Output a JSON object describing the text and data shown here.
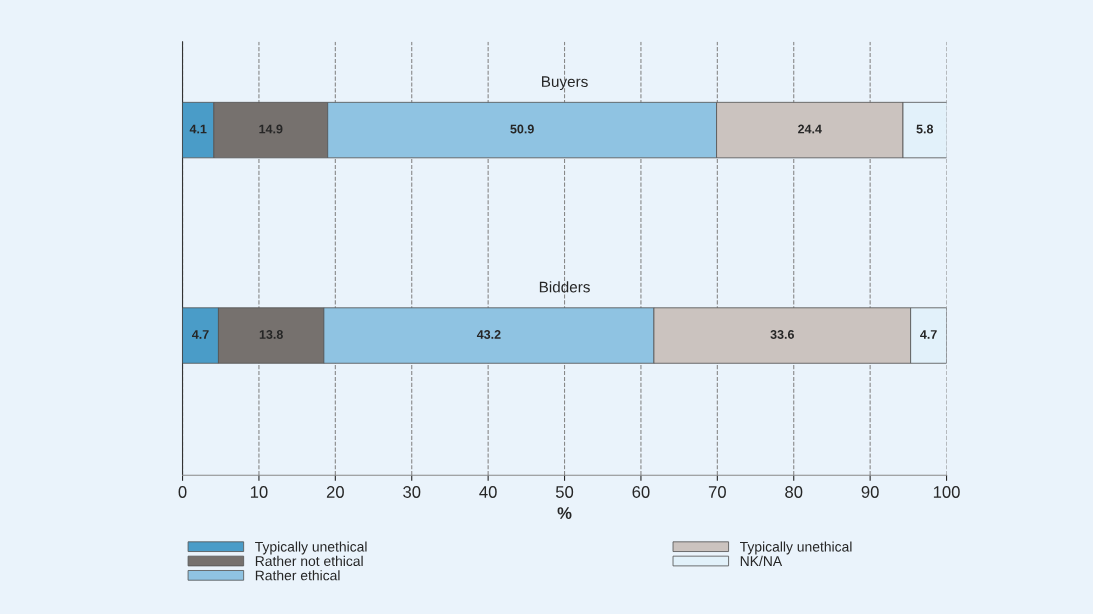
{
  "chart_data": {
    "type": "bar",
    "orientation": "horizontal",
    "stacked": true,
    "xlabel": "%",
    "categories": [
      "Buyers",
      "Bidders"
    ],
    "series": [
      {
        "name": "Typically unethical",
        "color": "#4a9cc8",
        "values": [
          4.1,
          4.7
        ]
      },
      {
        "name": "Rather not ethical",
        "color": "#76716e",
        "values": [
          14.9,
          13.8
        ]
      },
      {
        "name": "Rather ethical",
        "color": "#8fc3e2",
        "values": [
          50.9,
          43.2
        ]
      },
      {
        "name": "Typically unethical",
        "color": "#cbc3bf",
        "values": [
          24.4,
          33.6
        ]
      },
      {
        "name": "NK/NA",
        "color": "#e2f1fa",
        "values": [
          5.8,
          4.7
        ]
      }
    ],
    "xlim": [
      0,
      100
    ],
    "xticks": [
      0,
      10,
      20,
      30,
      40,
      50,
      60,
      70,
      80,
      90,
      100
    ],
    "data_labels": true,
    "grid": "x",
    "legend": "bottom",
    "tick_labels": "x"
  }
}
